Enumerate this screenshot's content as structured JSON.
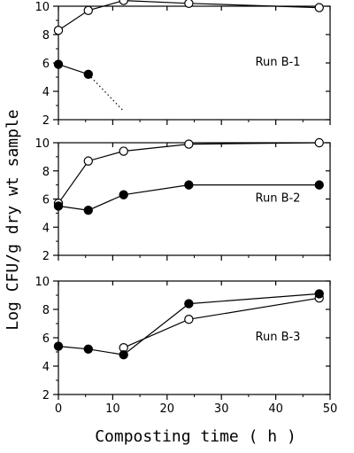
{
  "chart_data": [
    {
      "type": "line",
      "annotation": "Run B-1",
      "xlim": [
        0,
        50
      ],
      "ylim": [
        2,
        10
      ],
      "xticks": [
        0,
        10,
        20,
        30,
        40,
        50
      ],
      "yticks": [
        2,
        4,
        6,
        8,
        10
      ],
      "grid": false,
      "series": [
        {
          "marker": "open",
          "x": [
            0,
            5.5,
            12,
            24,
            48
          ],
          "y": [
            8.3,
            9.7,
            10.4,
            10.2,
            9.9
          ]
        },
        {
          "marker": "filled",
          "x": [
            0,
            5.5
          ],
          "y": [
            5.9,
            5.2
          ]
        },
        {
          "marker": "none",
          "linestyle": "dotted",
          "x": [
            5.5,
            12
          ],
          "y": [
            5.2,
            2.6
          ]
        }
      ]
    },
    {
      "type": "line",
      "annotation": "Run B-2",
      "xlim": [
        0,
        50
      ],
      "ylim": [
        2,
        10
      ],
      "xticks": [
        0,
        10,
        20,
        30,
        40,
        50
      ],
      "yticks": [
        2,
        4,
        6,
        8,
        10
      ],
      "grid": false,
      "series": [
        {
          "marker": "open",
          "x": [
            0,
            5.5,
            12,
            24,
            48
          ],
          "y": [
            5.7,
            8.7,
            9.4,
            9.9,
            10.0
          ]
        },
        {
          "marker": "filled",
          "x": [
            0,
            5.5,
            12,
            24,
            48
          ],
          "y": [
            5.5,
            5.2,
            6.3,
            7.0,
            7.0
          ]
        }
      ]
    },
    {
      "type": "line",
      "annotation": "Run B-3",
      "xlim": [
        0,
        50
      ],
      "ylim": [
        2,
        10
      ],
      "xticks": [
        0,
        10,
        20,
        30,
        40,
        50
      ],
      "yticks": [
        2,
        4,
        6,
        8,
        10
      ],
      "grid": false,
      "series": [
        {
          "marker": "open",
          "x": [
            12,
            24,
            48
          ],
          "y": [
            5.3,
            7.3,
            8.8
          ]
        },
        {
          "marker": "filled",
          "x": [
            0,
            5.5,
            12,
            24,
            48
          ],
          "y": [
            5.4,
            5.2,
            4.8,
            8.4,
            9.1
          ]
        }
      ]
    }
  ],
  "ylabel": "Log CFU/g dry wt sample",
  "xlabel": "Composting time ( h )"
}
